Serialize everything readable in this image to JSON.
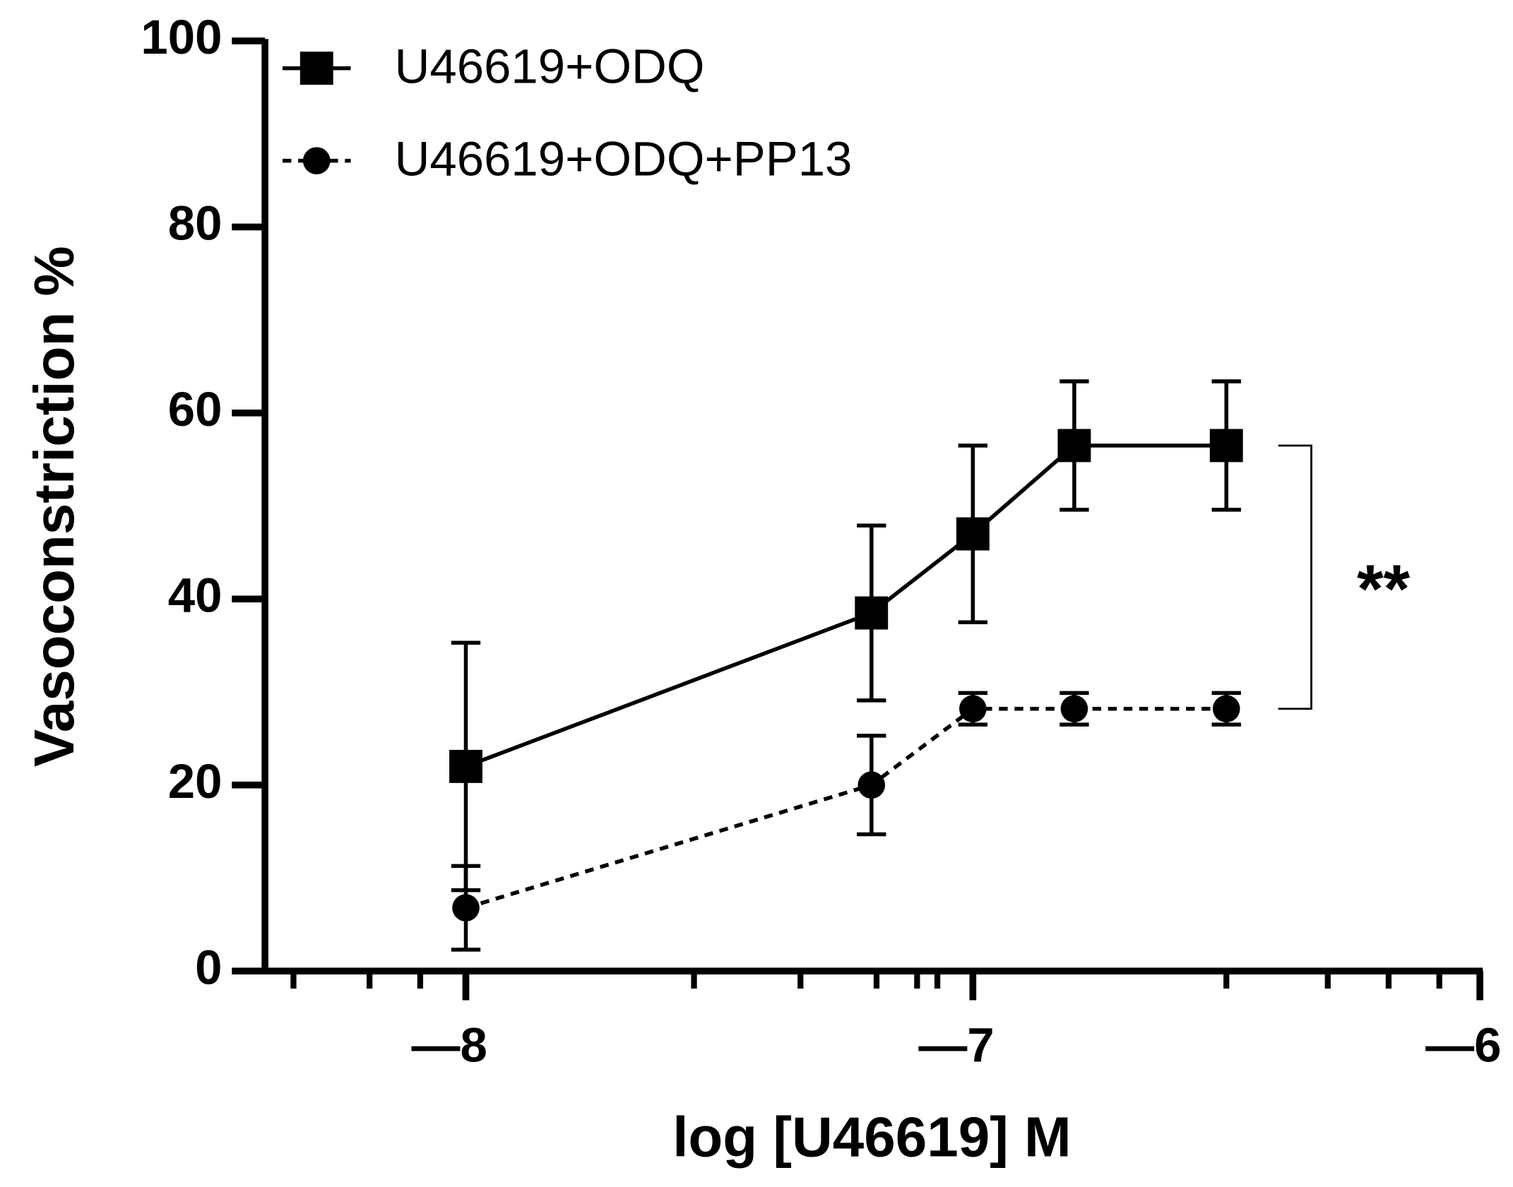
{
  "chart_data": {
    "type": "line",
    "x_label": "log [U46619] M",
    "y_label": "Vasoconstriction %",
    "annotation": "**",
    "xlim": [
      -8.4,
      -6
    ],
    "xticks": [
      {
        "value": -8,
        "label": "—8"
      },
      {
        "value": -7,
        "label": "—7"
      },
      {
        "value": -6,
        "label": "—6"
      }
    ],
    "xminorticks": [
      -8.34,
      -8.19,
      -8.09,
      -7.55,
      -7.34,
      -7.19,
      -7.11,
      -7.07,
      -6.5,
      -6.3,
      -6.18,
      -6.08
    ],
    "ylim": [
      0,
      100
    ],
    "yticks": [
      0,
      20,
      40,
      60,
      80,
      100
    ],
    "series": [
      {
        "name": "U46619+ODQ",
        "color": "#000000",
        "marker": "square",
        "dashed": false,
        "x": [
          -8,
          -7.2,
          -7,
          -6.8,
          -6.5
        ],
        "values": [
          22,
          38.5,
          47,
          56.5,
          56.5
        ],
        "errors": [
          13.3,
          9.4,
          9.5,
          6.9,
          6.9
        ]
      },
      {
        "name": "U46619+ODQ+PP13",
        "color": "#000000",
        "marker": "circle",
        "dashed": true,
        "x": [
          -8,
          -7.2,
          -7,
          -6.8,
          -6.5
        ],
        "values": [
          6.8,
          20,
          28.2,
          28.2,
          28.2
        ],
        "errors": [
          4.5,
          5.3,
          1.7,
          1.7,
          1.7
        ]
      }
    ]
  }
}
